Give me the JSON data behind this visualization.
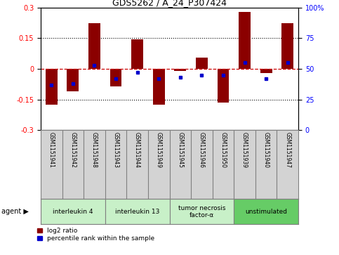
{
  "title": "GDS5262 / A_24_P307424",
  "samples": [
    "GSM1151941",
    "GSM1151942",
    "GSM1151948",
    "GSM1151943",
    "GSM1151944",
    "GSM1151949",
    "GSM1151945",
    "GSM1151946",
    "GSM1151950",
    "GSM1151939",
    "GSM1151940",
    "GSM1151947"
  ],
  "log2_ratio": [
    -0.175,
    -0.11,
    0.225,
    -0.085,
    0.145,
    -0.175,
    -0.01,
    0.055,
    -0.165,
    0.28,
    -0.02,
    0.225
  ],
  "percentile": [
    37,
    38,
    53,
    42,
    47,
    42,
    43,
    45,
    45,
    55,
    42,
    55
  ],
  "agents": [
    {
      "label": "interleukin 4",
      "samples": [
        0,
        1,
        2
      ],
      "color": "#c8f0c8"
    },
    {
      "label": "interleukin 13",
      "samples": [
        3,
        4,
        5
      ],
      "color": "#c8f0c8"
    },
    {
      "label": "tumor necrosis\nfactor-α",
      "samples": [
        6,
        7,
        8
      ],
      "color": "#c8f0c8"
    },
    {
      "label": "unstimulated",
      "samples": [
        9,
        10,
        11
      ],
      "color": "#66cc66"
    }
  ],
  "ylim": [
    -0.3,
    0.3
  ],
  "yticks_left": [
    -0.3,
    -0.15,
    0,
    0.15,
    0.3
  ],
  "yticks_right": [
    0,
    25,
    50,
    75,
    100
  ],
  "bar_color": "#8b0000",
  "dot_color": "#0000cc",
  "hline_color": "#cc0000",
  "dotline_color": "black",
  "background_plot": "white",
  "background_sample": "#d3d3d3"
}
